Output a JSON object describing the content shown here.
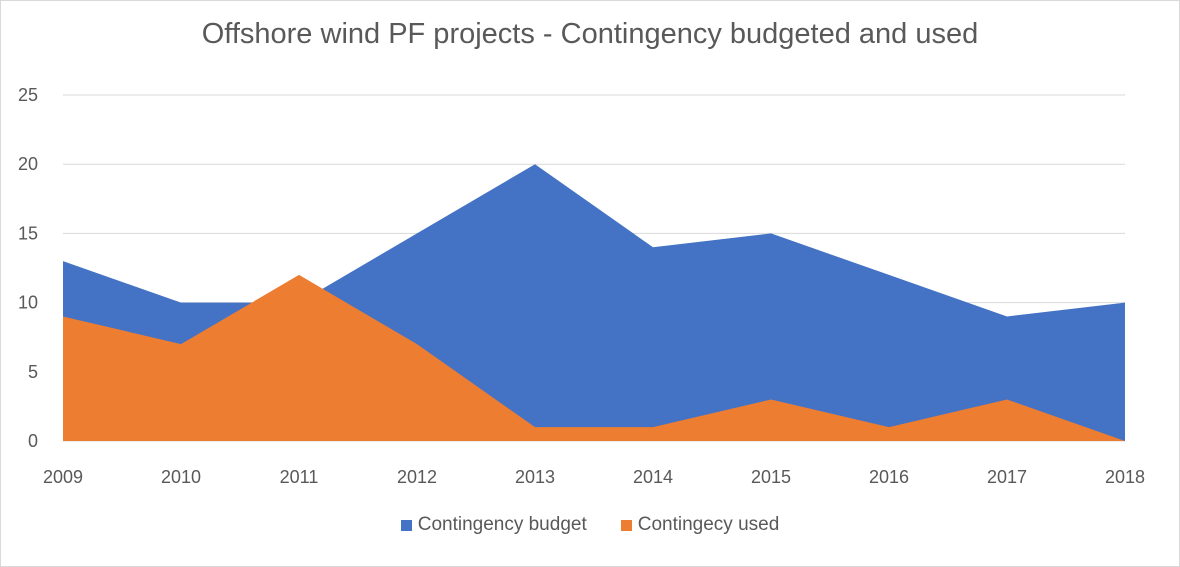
{
  "chart_data": {
    "type": "area",
    "title": "Offshore wind PF projects - Contingency budgeted and used",
    "categories": [
      "2009",
      "2010",
      "2011",
      "2012",
      "2013",
      "2014",
      "2015",
      "2016",
      "2017",
      "2018"
    ],
    "yticks": [
      "0",
      "5",
      "10",
      "15",
      "20",
      "25"
    ],
    "ylim": [
      0,
      25
    ],
    "grid": true,
    "legend_position": "bottom",
    "series": [
      {
        "name": "Contingency budget",
        "color": "#4472c4",
        "values": [
          13,
          10,
          10,
          15,
          20,
          14,
          15,
          12,
          9,
          10
        ]
      },
      {
        "name": "Contingecy used",
        "color": "#ed7d31",
        "values": [
          9,
          7,
          12,
          7,
          1,
          1,
          3,
          1,
          3,
          0
        ]
      }
    ]
  }
}
